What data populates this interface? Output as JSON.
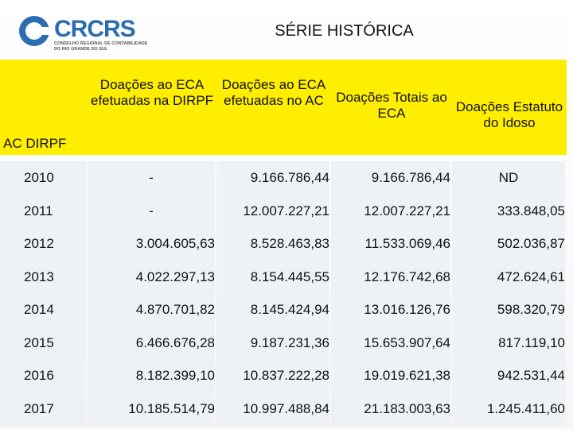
{
  "logo": {
    "name": "CRCRS",
    "subtitle": [
      "CONSELHO REGIONAL DE CONTABILIDADE",
      "DO RIO GRANDE DO SUL"
    ]
  },
  "title": "SÉRIE HISTÓRICA",
  "table": {
    "header": [
      "AC DIRPF",
      "Doações ao ECA efetuadas na DIRPF",
      "Doações ao ECA efetuadas no AC",
      "Doações Totais ao ECA",
      "Doações Estatuto do Idoso"
    ],
    "rows": [
      [
        "2010",
        "-",
        "9.166.786,44",
        "9.166.786,44",
        "ND"
      ],
      [
        "2011",
        "-",
        "12.007.227,21",
        "12.007.227,21",
        "333.848,05"
      ],
      [
        "2012",
        "3.004.605,63",
        "8.528.463,83",
        "11.533.069,46",
        "502.036,87"
      ],
      [
        "2013",
        "4.022.297,13",
        "8.154.445,55",
        "12.176.742,68",
        "472.624,61"
      ],
      [
        "2014",
        "4.870.701,82",
        "8.145.424,94",
        "13.016.126,76",
        "598.320,79"
      ],
      [
        "2015",
        "6.466.676,28",
        "9.187.231,36",
        "15.653.907,64",
        "817.119,10"
      ],
      [
        "2016",
        "8.182.399,10",
        "10.837.222,28",
        "19.019.621,38",
        "942.531,44"
      ],
      [
        "2017",
        "10.185.514,79",
        "10.997.488,84",
        "21.183.003,63",
        "1.245.411,60"
      ]
    ]
  }
}
